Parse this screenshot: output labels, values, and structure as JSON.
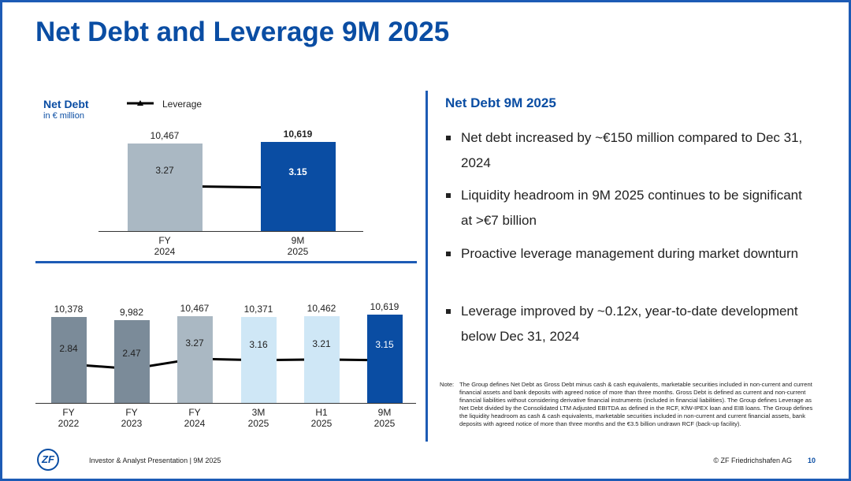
{
  "title": "Net Debt and Leverage 9M 2025",
  "chart_data": [
    {
      "type": "bar",
      "title": "Net Debt",
      "subtitle": "in € million",
      "categories": [
        "FY\n2024",
        "9M\n2025"
      ],
      "values": [
        10467,
        10619
      ],
      "value_labels": [
        "10,467",
        "10,619"
      ],
      "colors": [
        "#aab8c3",
        "#0a4da3"
      ],
      "series": [
        {
          "name": "Leverage",
          "type": "line",
          "color": "#000000",
          "values": [
            3.27,
            3.15
          ]
        }
      ]
    },
    {
      "type": "bar",
      "categories": [
        "FY\n2022",
        "FY\n2023",
        "FY\n2024",
        "3M\n2025",
        "H1\n2025",
        "9M\n2025"
      ],
      "values": [
        10378,
        9982,
        10467,
        10371,
        10462,
        10619
      ],
      "value_labels": [
        "10,378",
        "9,982",
        "10,467",
        "10,371",
        "10,462",
        "10,619"
      ],
      "colors": [
        "#7b8b99",
        "#7b8b99",
        "#aab8c3",
        "#cfe7f6",
        "#cfe7f6",
        "#0a4da3"
      ],
      "series": [
        {
          "type": "line",
          "color": "#000000",
          "values": [
            2.84,
            2.47,
            3.27,
            3.16,
            3.21,
            3.15
          ]
        }
      ]
    }
  ],
  "heading": "Net Debt 9M 2025",
  "bullets": [
    "Net debt increased by ~€150 million compared to Dec 31, 2024",
    "Liquidity headroom in 9M 2025 continues to be significant at >€7 billion",
    "Proactive leverage management during market downturn",
    "Leverage improved by ~0.12x, year-to-date development below Dec 31, 2024"
  ],
  "note_label": "Note:",
  "note": "The Group defines Net Debt as Gross Debt minus cash & cash equivalents, marketable securities included in non-current and current financial assets and bank deposits with agreed notice of more than three months. Gross Debt is defined as current and non-current financial liabilities without considering derivative financial instruments (included in financial liabilities). The Group defines Leverage as Net Debt divided by the Consolidated LTM Adjusted EBITDA as defined in the RCF, KfW-IPEX loan and EIB loans. The Group defines the liquidity headroom as cash & cash equivalents, marketable securities included in non-current and current financial assets, bank deposits with agreed notice of more than three months and the €3.5 billion undrawn RCF (back-up facility).",
  "footer": {
    "logo": "ZF",
    "left": "Investor & Analyst Presentation | 9M 2025",
    "right": "© ZF Friedrichshafen AG",
    "page": "10"
  }
}
